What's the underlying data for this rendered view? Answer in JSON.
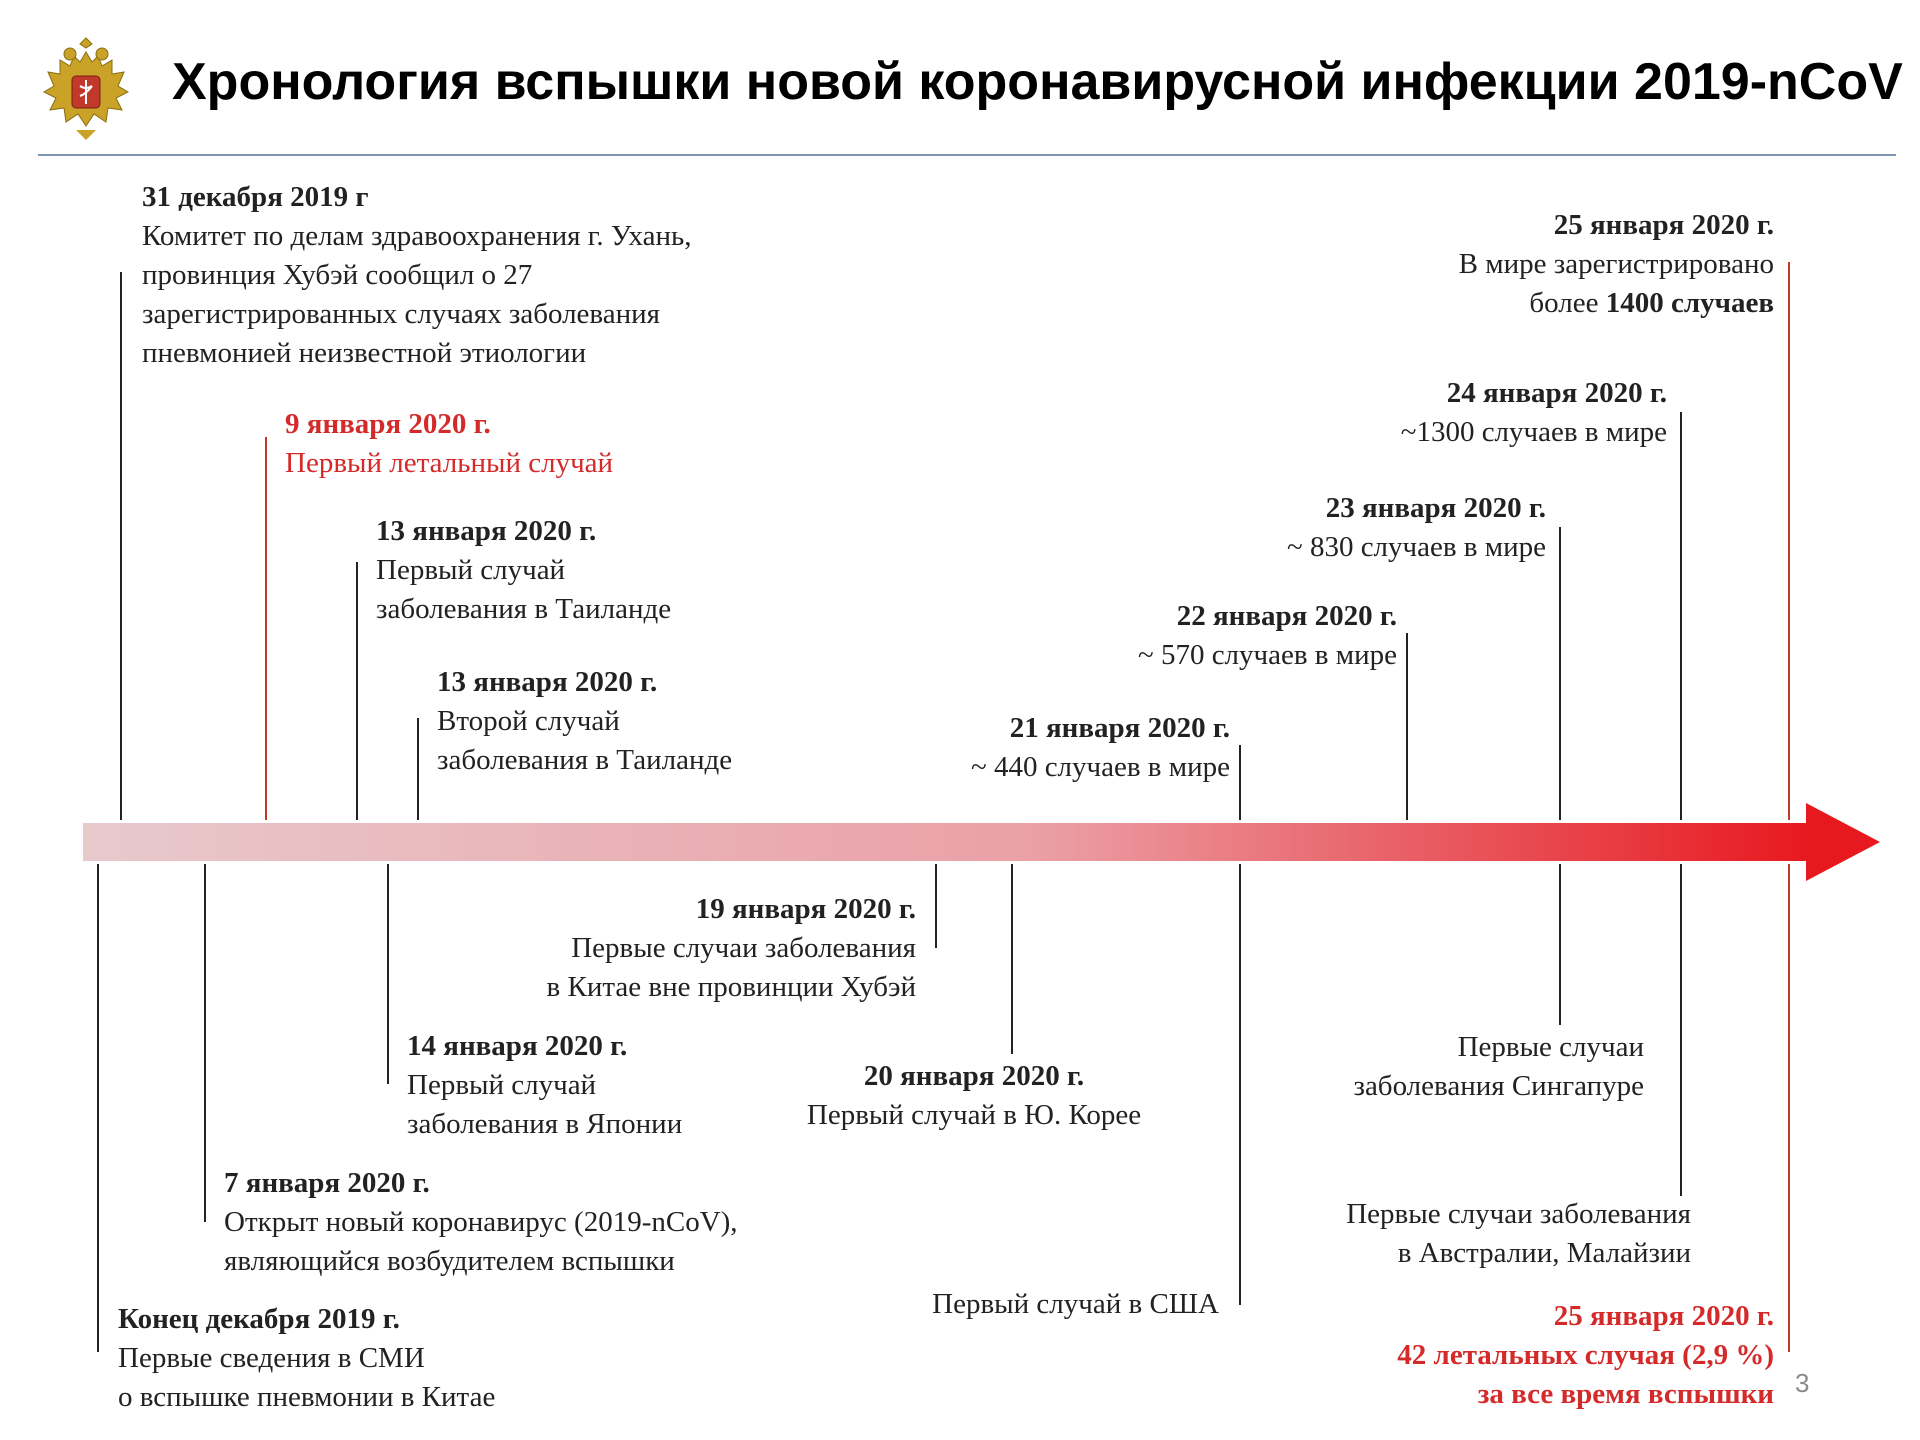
{
  "header": {
    "title": "Хронология вспышки новой коронавирусной инфекции 2019-nCoV",
    "emblem_icon": "double-headed-eagle-emblem-icon"
  },
  "colors": {
    "arrow_start": "#e8c9cc",
    "arrow_end": "#e8181f",
    "red_text": "#d42a2a",
    "header_rule": "#7f96b0",
    "connector": "#222222",
    "red_connector": "#c0392b"
  },
  "events_above": [
    {
      "date": "31 декабря 2019 г",
      "lines": [
        "Комитет по делам здравоохранения г. Ухань,",
        "провинция Хубэй  сообщил о 27",
        "зарегистрированных случаях заболевания",
        "пневмонией неизвестной этиологии"
      ]
    },
    {
      "date": "9 января 2020 г.",
      "lines": [
        "Первый летальный случай"
      ],
      "highlight": "red"
    },
    {
      "date": "13 января 2020 г.",
      "lines": [
        "Первый случай",
        "заболевания в Таиланде"
      ]
    },
    {
      "date": "13 января 2020 г.",
      "lines": [
        "Второй случай",
        "заболевания в Таиланде"
      ]
    },
    {
      "date": "21 января 2020 г.",
      "lines": [
        "~ 440 случаев в мире"
      ]
    },
    {
      "date": "22 января 2020 г.",
      "lines": [
        "~ 570 случаев в мире"
      ]
    },
    {
      "date": "23 января 2020 г.",
      "lines": [
        "~ 830 случаев в мире"
      ]
    },
    {
      "date": "24 января 2020 г.",
      "lines": [
        "~1300 случаев в мире"
      ]
    },
    {
      "date": "25 января 2020 г.",
      "lines": [
        "В мире зарегистрировано"
      ],
      "last_prefix": "более ",
      "last_bold": "1400 случаев"
    }
  ],
  "events_below": [
    {
      "date": "Конец декабря 2019 г.",
      "lines": [
        "Первые сведения в СМИ",
        "о вспышке пневмонии в Китае"
      ]
    },
    {
      "date": "7 января 2020 г.",
      "lines": [
        "Открыт новый коронавирус (2019-nCoV),",
        "являющийся возбудителем вспышки"
      ]
    },
    {
      "date": "14 января 2020 г.",
      "lines": [
        "Первый случай",
        "заболевания в Японии"
      ]
    },
    {
      "date": "19 января 2020 г.",
      "lines": [
        "Первые случаи заболевания",
        "в Китае вне провинции Хубэй"
      ]
    },
    {
      "date": "20 января 2020 г.",
      "lines": [
        "Первый случай в Ю. Корее"
      ]
    },
    {
      "date": "",
      "lines": [
        "Первый случай в США"
      ]
    },
    {
      "date": "",
      "lines": [
        "Первые случаи",
        "заболевания Сингапуре"
      ]
    },
    {
      "date": "",
      "lines": [
        "Первые случаи заболевания",
        "в Австралии, Малайзии"
      ]
    },
    {
      "date": "25 января 2020 г.",
      "lines": [
        "42 летальных случая (2,9 %)",
        "за все время вспышки"
      ],
      "highlight": "red"
    }
  ],
  "page_number": "3"
}
